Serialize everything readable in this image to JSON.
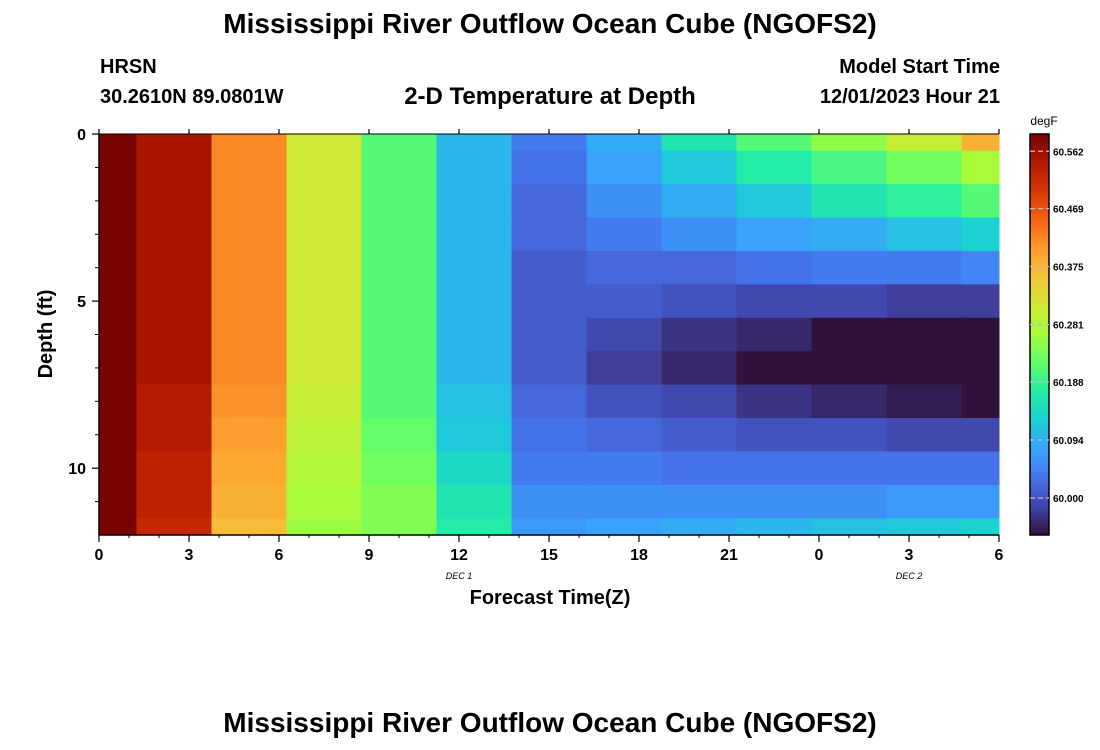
{
  "header": {
    "title": "Mississippi River Outflow Ocean Cube (NGOFS2)",
    "station": "HRSN",
    "coords": "30.2610N  89.0801W",
    "subtitle": "2-D Temperature at Depth",
    "model_start_label": "Model Start Time",
    "model_start_value": "12/01/2023 Hour 21"
  },
  "footer": {
    "title_repeat": "Mississippi River Outflow Ocean Cube (NGOFS2)"
  },
  "chart_data": {
    "type": "heatmap",
    "xlabel": "Forecast Time(Z)",
    "ylabel": "Depth (ft)",
    "x_hours": [
      0,
      3,
      6,
      9,
      12,
      15,
      18,
      21,
      24,
      27,
      30
    ],
    "x_tick_labels": [
      "0",
      "3",
      "6",
      "9",
      "12",
      "15",
      "18",
      "21",
      "0",
      "3",
      "6"
    ],
    "date_labels": [
      {
        "hour": 12,
        "label": "DEC 1"
      },
      {
        "hour": 27,
        "label": "DEC 2"
      }
    ],
    "xlim": [
      0,
      30
    ],
    "ylim": [
      12,
      0
    ],
    "y_ticks": [
      0,
      5,
      10
    ],
    "y_tick_labels": [
      "0",
      "5",
      "10"
    ],
    "time_edges": [
      0,
      1.25,
      3.75,
      6.25,
      8.75,
      11.25,
      13.75,
      16.25,
      18.75,
      21.25,
      23.75,
      26.25,
      28.75,
      30
    ],
    "depth_edges": [
      0,
      0.5,
      1.5,
      2.5,
      3.5,
      4.5,
      5.5,
      6.5,
      7.5,
      8.5,
      9.5,
      10.5,
      11.5,
      12
    ],
    "values": [
      [
        60.59,
        60.55,
        60.42,
        60.31,
        60.21,
        60.1,
        60.04,
        60.09,
        60.16,
        60.21,
        60.25,
        60.3,
        60.38
      ],
      [
        60.59,
        60.55,
        60.42,
        60.31,
        60.21,
        60.1,
        60.03,
        60.08,
        60.12,
        60.17,
        60.2,
        60.23,
        60.27
      ],
      [
        60.59,
        60.55,
        60.42,
        60.31,
        60.21,
        60.1,
        60.02,
        60.06,
        60.09,
        60.12,
        60.16,
        60.18,
        60.21
      ],
      [
        60.59,
        60.55,
        60.42,
        60.31,
        60.21,
        60.1,
        60.02,
        60.04,
        60.06,
        60.08,
        60.09,
        60.11,
        60.13
      ],
      [
        60.59,
        60.55,
        60.42,
        60.31,
        60.21,
        60.1,
        60.01,
        60.02,
        60.02,
        60.03,
        60.04,
        60.04,
        60.05
      ],
      [
        60.59,
        60.55,
        60.42,
        60.31,
        60.21,
        60.1,
        60.01,
        60.01,
        60.0,
        59.99,
        59.99,
        59.98,
        59.98
      ],
      [
        60.59,
        60.55,
        60.42,
        60.31,
        60.21,
        60.1,
        60.01,
        59.99,
        59.97,
        59.96,
        59.94,
        59.92,
        59.89
      ],
      [
        60.59,
        60.55,
        60.42,
        60.31,
        60.21,
        60.1,
        60.01,
        59.98,
        59.96,
        59.93,
        59.9,
        59.87,
        59.85
      ],
      [
        60.59,
        60.54,
        60.41,
        60.3,
        60.21,
        60.11,
        60.02,
        60.0,
        59.99,
        59.97,
        59.96,
        59.95,
        59.94
      ],
      [
        60.59,
        60.54,
        60.4,
        60.29,
        60.22,
        60.12,
        60.03,
        60.02,
        60.01,
        60.0,
        60.0,
        59.99,
        59.99
      ],
      [
        60.59,
        60.53,
        60.39,
        60.28,
        60.23,
        60.14,
        60.04,
        60.04,
        60.03,
        60.03,
        60.03,
        60.03,
        60.03
      ],
      [
        60.59,
        60.53,
        60.38,
        60.27,
        60.24,
        60.16,
        60.06,
        60.06,
        60.06,
        60.06,
        60.06,
        60.07,
        60.07
      ],
      [
        60.59,
        60.52,
        60.37,
        60.26,
        60.24,
        60.17,
        60.07,
        60.08,
        60.09,
        60.1,
        60.11,
        60.12,
        60.13
      ]
    ],
    "colorbar": {
      "unit": "degF",
      "min": 59.94,
      "max": 60.59,
      "ticks": [
        60.562,
        60.469,
        60.375,
        60.281,
        60.188,
        60.094,
        60.0
      ],
      "tick_labels": [
        "60.562",
        "60.469",
        "60.375",
        "60.281",
        "60.188",
        "60.094",
        "60.000"
      ],
      "colormap": [
        "#30123b",
        "#4145ab",
        "#4675ed",
        "#39a2fc",
        "#1bcfd4",
        "#24eca6",
        "#61fc6c",
        "#a4fc3b",
        "#d1e834",
        "#f3c63a",
        "#fe9b2d",
        "#f36315",
        "#d93806",
        "#b11901",
        "#7a0402"
      ]
    }
  }
}
